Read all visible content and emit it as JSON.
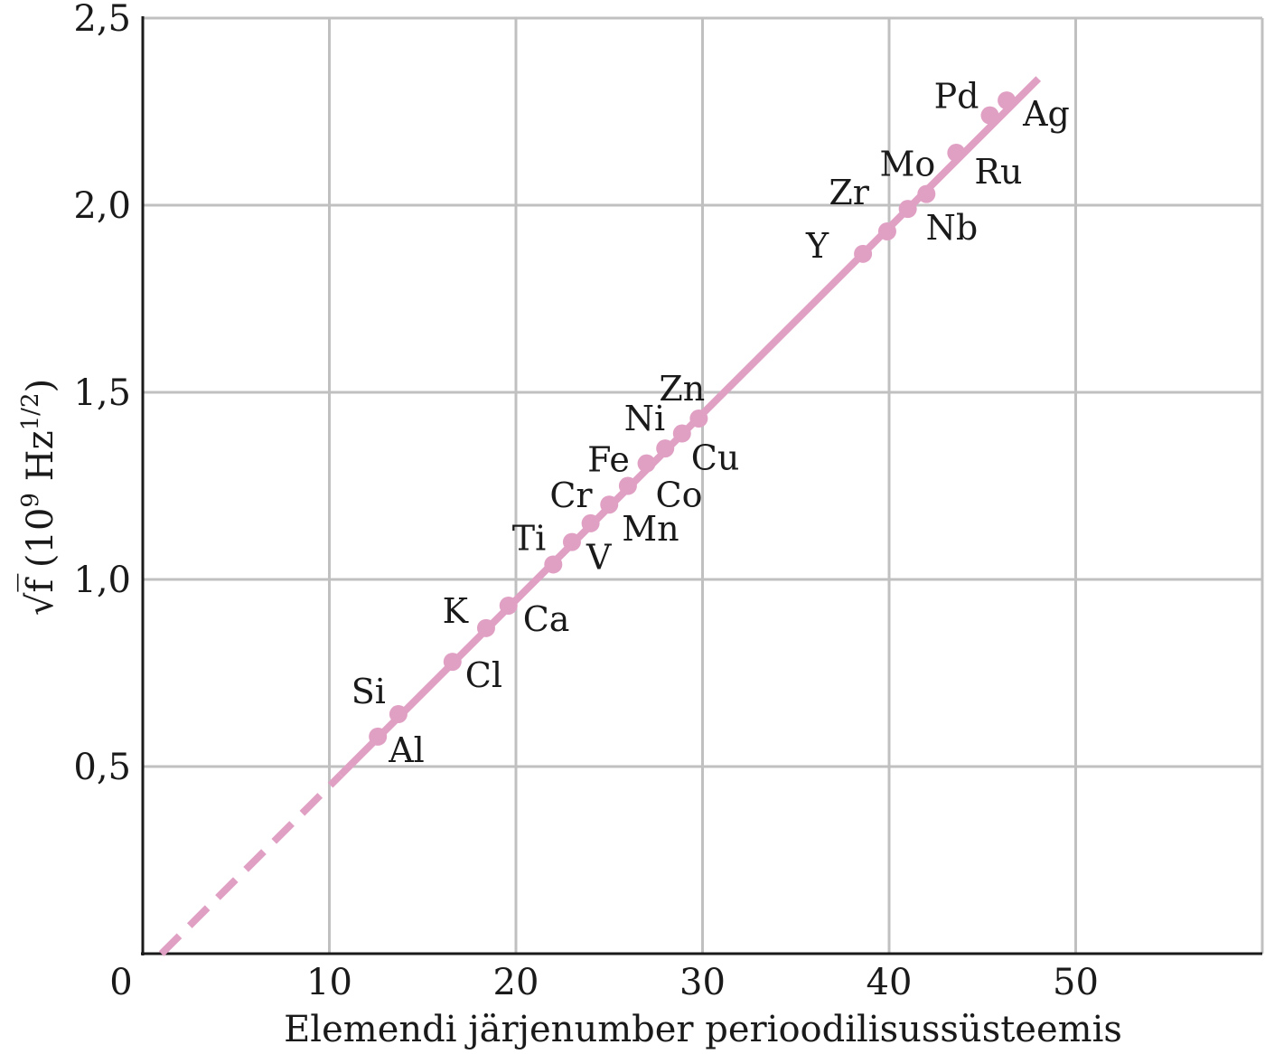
{
  "chart_data": {
    "type": "scatter",
    "xlabel": "Elemendi järjenumber perioodilisussüsteemis",
    "ylabel_main": "√f̅ (10",
    "ylabel_exp": "9",
    "ylabel_unit": " Hz",
    "ylabel_unit_exp": "1/2",
    "ylabel_close": ")",
    "xlim": [
      0,
      60
    ],
    "ylim": [
      0,
      2.5
    ],
    "x_ticks": [
      0,
      10,
      20,
      30,
      40,
      50
    ],
    "x_tick_labels": [
      "0",
      "10",
      "20",
      "30",
      "40",
      "50"
    ],
    "y_ticks": [
      0.5,
      1.0,
      1.5,
      2.0,
      2.5
    ],
    "y_tick_labels": [
      "0,5",
      "1,0",
      "1,5",
      "2,0",
      "2,5"
    ],
    "grid": true,
    "colors": {
      "series": "#e0a0c4",
      "grid": "#c0c0c0",
      "axis": "#1a1a1a"
    },
    "fit_line": {
      "dashed_range": [
        1,
        10.6
      ],
      "solid_range": [
        10.6,
        48
      ],
      "intercept": -0.05,
      "slope": 0.04975
    },
    "points": [
      {
        "element": "Al",
        "x": 12.6,
        "y": 0.58
      },
      {
        "element": "Si",
        "x": 13.7,
        "y": 0.64
      },
      {
        "element": "Cl",
        "x": 16.6,
        "y": 0.78
      },
      {
        "element": "K",
        "x": 18.4,
        "y": 0.87
      },
      {
        "element": "Ca",
        "x": 19.6,
        "y": 0.93
      },
      {
        "element": "Ti",
        "x": 22.0,
        "y": 1.04
      },
      {
        "element": "V",
        "x": 23.0,
        "y": 1.1
      },
      {
        "element": "Cr",
        "x": 24.0,
        "y": 1.15
      },
      {
        "element": "Mn",
        "x": 25.0,
        "y": 1.2
      },
      {
        "element": "Fe",
        "x": 26.0,
        "y": 1.25
      },
      {
        "element": "Co",
        "x": 27.0,
        "y": 1.31
      },
      {
        "element": "Ni",
        "x": 28.0,
        "y": 1.35
      },
      {
        "element": "Cu",
        "x": 28.9,
        "y": 1.39
      },
      {
        "element": "Zn",
        "x": 29.8,
        "y": 1.43
      },
      {
        "element": "Y",
        "x": 38.6,
        "y": 1.87
      },
      {
        "element": "Zr",
        "x": 39.9,
        "y": 1.93
      },
      {
        "element": "Nb",
        "x": 41.0,
        "y": 1.99
      },
      {
        "element": "Mo",
        "x": 42.0,
        "y": 2.03
      },
      {
        "element": "Ru",
        "x": 43.6,
        "y": 2.14
      },
      {
        "element": "Pd",
        "x": 45.4,
        "y": 2.24
      },
      {
        "element": "Ag",
        "x": 46.3,
        "y": 2.28
      }
    ]
  }
}
